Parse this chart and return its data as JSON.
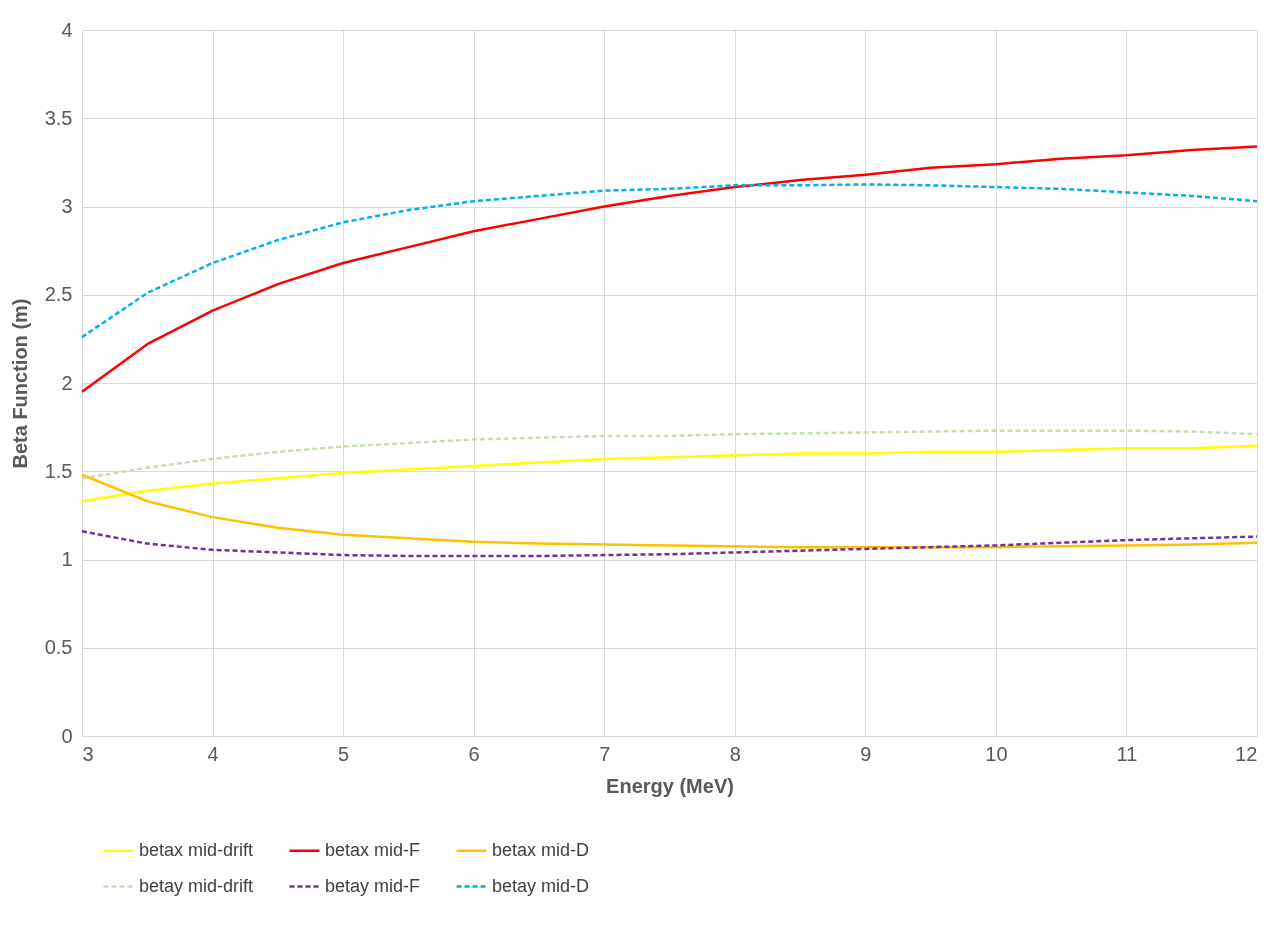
{
  "chart_data": {
    "type": "line",
    "xlabel": "Energy (MeV)",
    "ylabel": "Beta Function (m)",
    "x": [
      3,
      3.5,
      4,
      4.5,
      5,
      5.5,
      6,
      6.5,
      7,
      7.5,
      8,
      8.5,
      9,
      9.5,
      10,
      10.5,
      11,
      11.5,
      12
    ],
    "series": [
      {
        "name": "betax mid-drift",
        "color": "#ffff00",
        "line_style": "solid",
        "values": [
          1.33,
          1.39,
          1.43,
          1.46,
          1.49,
          1.51,
          1.53,
          1.55,
          1.57,
          1.58,
          1.59,
          1.6,
          1.6,
          1.61,
          1.61,
          1.62,
          1.63,
          1.63,
          1.645
        ]
      },
      {
        "name": "betax mid-F",
        "color": "#ff0000",
        "line_style": "solid",
        "values": [
          1.95,
          2.22,
          2.41,
          2.56,
          2.68,
          2.77,
          2.86,
          2.93,
          3.0,
          3.06,
          3.11,
          3.15,
          3.18,
          3.22,
          3.24,
          3.27,
          3.29,
          3.32,
          3.34
        ]
      },
      {
        "name": "betax mid-D",
        "color": "#ffc000",
        "line_style": "solid",
        "values": [
          1.48,
          1.33,
          1.24,
          1.18,
          1.14,
          1.12,
          1.1,
          1.09,
          1.085,
          1.08,
          1.075,
          1.07,
          1.07,
          1.07,
          1.07,
          1.075,
          1.08,
          1.085,
          1.095
        ]
      },
      {
        "name": "betay mid-drift",
        "color": "#c5e0b4",
        "line_style": "dashed",
        "values": [
          1.46,
          1.52,
          1.57,
          1.61,
          1.64,
          1.66,
          1.68,
          1.69,
          1.7,
          1.7,
          1.71,
          1.715,
          1.72,
          1.725,
          1.73,
          1.73,
          1.73,
          1.725,
          1.71
        ]
      },
      {
        "name": "betay mid-F",
        "color": "#7030a0",
        "line_style": "dashed",
        "values": [
          1.16,
          1.09,
          1.055,
          1.04,
          1.025,
          1.02,
          1.02,
          1.02,
          1.025,
          1.03,
          1.04,
          1.05,
          1.06,
          1.07,
          1.08,
          1.095,
          1.11,
          1.12,
          1.13
        ]
      },
      {
        "name": "betay mid-D",
        "color": "#00b0f0",
        "line_style": "dashed",
        "values": [
          2.26,
          2.51,
          2.68,
          2.81,
          2.91,
          2.98,
          3.03,
          3.06,
          3.09,
          3.1,
          3.12,
          3.12,
          3.125,
          3.12,
          3.11,
          3.1,
          3.08,
          3.06,
          3.03
        ]
      }
    ],
    "xlim": [
      3,
      12
    ],
    "xticks": [
      3,
      4,
      5,
      6,
      7,
      8,
      9,
      10,
      11,
      12
    ],
    "ylim": [
      0,
      4
    ],
    "yticks": [
      0,
      0.5,
      1,
      1.5,
      2,
      2.5,
      3,
      3.5,
      4
    ],
    "grid": true,
    "legend": "bottom"
  }
}
